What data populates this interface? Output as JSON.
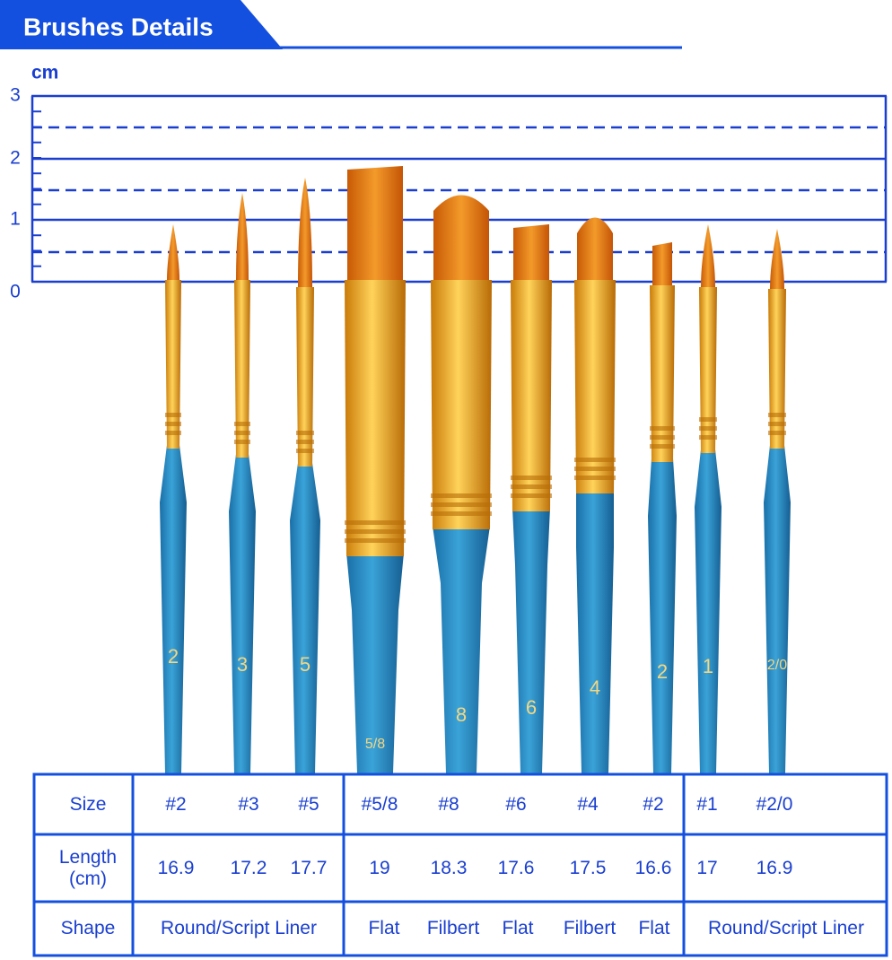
{
  "header": {
    "title": "Brushes Details"
  },
  "scale": {
    "unit": "cm",
    "labels": [
      "0",
      "1",
      "2",
      "3"
    ]
  },
  "brushes": {
    "handle_labels": [
      "2",
      "3",
      "5",
      "5/8",
      "8",
      "6",
      "4",
      "2",
      "1",
      "2/0"
    ]
  },
  "table": {
    "size_label": "Size",
    "sizes": [
      "#2",
      "#3",
      "#5",
      "#5/8",
      "#8",
      "#6",
      "#4",
      "#2",
      "#1",
      "#2/0"
    ],
    "length_label": "Length (cm)",
    "lengths": [
      "16.9",
      "17.2",
      "17.7",
      "19",
      "18.3",
      "17.6",
      "17.5",
      "16.6",
      "17",
      "16.9"
    ],
    "shape_label": "Shape",
    "shapes": [
      "Round/Script Liner",
      "Flat",
      "Filbert",
      "Flat",
      "Filbert",
      "Flat",
      "Round/Script Liner"
    ]
  }
}
